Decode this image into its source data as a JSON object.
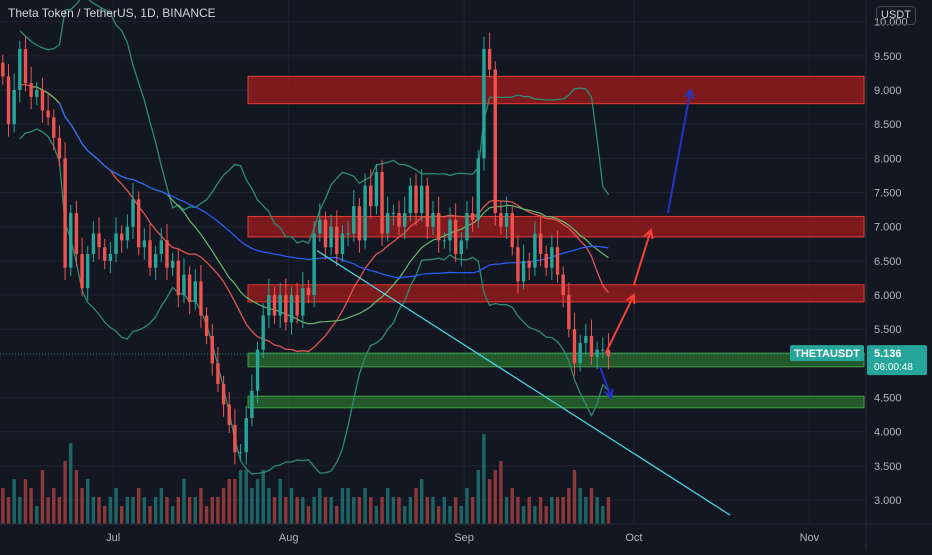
{
  "header": {
    "title": "Theta Token / TetherUS, 1D, BINANCE",
    "currency_button": "USDT"
  },
  "price_tag": {
    "symbol": "THETAUSDT",
    "price": "5.136",
    "countdown": "06:00:48",
    "color": "#26a69a"
  },
  "colors": {
    "background": "#131722",
    "grid": "#1f2330",
    "axis_text": "#b2b5be",
    "candle_up": "#26a69a",
    "candle_down": "#ef5350",
    "resistance_zone": "#b71c1c",
    "support_zone": "#2e7d32",
    "trendline": "#4dd0e1",
    "bb_outer": "#2e8b72",
    "bb_basis": "#e05550",
    "ma_long": "#2962ff",
    "ma_mid": "#66bb6a",
    "arrow_red": "#f44336",
    "arrow_blue": "#2035c8"
  },
  "chart_data": {
    "type": "candlestick",
    "title": "Theta Token / TetherUS, 1D, BINANCE",
    "x_tick_labels": [
      "Jul",
      "Aug",
      "Sep",
      "Oct",
      "Nov"
    ],
    "y_tick_labels": [
      "10.000",
      "9.500",
      "9.000",
      "8.500",
      "8.000",
      "7.500",
      "7.000",
      "6.500",
      "6.000",
      "5.500",
      "4.500",
      "4.000",
      "3.500",
      "3.000"
    ],
    "y_ticks": [
      10,
      9.5,
      9,
      8.5,
      8,
      7.5,
      7,
      6.5,
      6,
      5.5,
      4.5,
      4,
      3.5,
      3
    ],
    "ylim": [
      2.65,
      10.2
    ],
    "start_date": "2021-06-11",
    "end_date": "2021-11-11",
    "x_ticks": [
      "2021-07-01",
      "2021-08-01",
      "2021-09-01",
      "2021-10-01",
      "2021-11-01"
    ],
    "closes": [
      9.2,
      8.5,
      9.0,
      9.6,
      9.1,
      8.9,
      9.0,
      8.7,
      8.6,
      8.3,
      8.0,
      6.4,
      7.2,
      6.6,
      6.1,
      6.6,
      6.9,
      6.7,
      6.5,
      6.6,
      6.9,
      6.8,
      7.0,
      7.4,
      6.7,
      6.8,
      6.4,
      6.6,
      6.8,
      6.4,
      6.5,
      6.0,
      6.3,
      5.9,
      6.2,
      5.7,
      5.4,
      5.0,
      4.7,
      4.4,
      4.1,
      3.7,
      3.7,
      4.2,
      4.6,
      5.2,
      5.7,
      6.0,
      5.7,
      6.0,
      5.6,
      6.0,
      5.7,
      6.1,
      6.0,
      6.9,
      7.1,
      6.7,
      7.0,
      6.6,
      6.9,
      6.9,
      7.3,
      6.8,
      7.6,
      7.3,
      7.8,
      6.9,
      7.2,
      7.2,
      7.0,
      7.2,
      7.6,
      7.2,
      7.6,
      7.0,
      7.2,
      6.8,
      6.8,
      7.1,
      6.6,
      6.8,
      7.2,
      7.1,
      8.0,
      9.6,
      9.3,
      7.2,
      7.0,
      7.2,
      6.7,
      6.2,
      6.5,
      6.4,
      6.9,
      6.6,
      6.4,
      6.7,
      6.3,
      6.0,
      5.5,
      5.0,
      5.3,
      5.4,
      5.1,
      5.2,
      5.2,
      5.1
    ],
    "volume_scale": [
      0.4,
      0.3,
      0.5,
      0.3,
      0.5,
      0.4,
      0.2,
      0.6,
      0.3,
      0.4,
      0.3,
      0.7,
      0.9,
      0.6,
      0.4,
      0.5,
      0.3,
      0.3,
      0.2,
      0.3,
      0.4,
      0.2,
      0.3,
      0.3,
      0.4,
      0.3,
      0.2,
      0.3,
      0.4,
      0.3,
      0.2,
      0.3,
      0.5,
      0.3,
      0.3,
      0.4,
      0.2,
      0.3,
      0.3,
      0.4,
      0.5,
      0.5,
      0.6,
      0.6,
      0.4,
      0.5,
      0.6,
      0.4,
      0.3,
      0.5,
      0.3,
      0.4,
      0.3,
      0.3,
      0.2,
      0.3,
      0.4,
      0.3,
      0.3,
      0.2,
      0.4,
      0.4,
      0.3,
      0.3,
      0.4,
      0.3,
      0.2,
      0.3,
      0.4,
      0.3,
      0.3,
      0.2,
      0.3,
      0.4,
      0.5,
      0.3,
      0.3,
      0.2,
      0.3,
      0.2,
      0.3,
      0.2,
      0.4,
      0.3,
      0.6,
      1.0,
      0.5,
      0.6,
      0.7,
      0.3,
      0.4,
      0.3,
      0.2,
      0.3,
      0.2,
      0.3,
      0.2,
      0.3,
      0.3,
      0.3,
      0.4,
      0.6,
      0.4,
      0.3,
      0.4,
      0.3,
      0.2,
      0.3
    ],
    "zones": [
      {
        "kind": "resistance",
        "y1": 8.8,
        "y2": 9.2
      },
      {
        "kind": "resistance",
        "y1": 6.85,
        "y2": 7.15
      },
      {
        "kind": "resistance",
        "y1": 5.9,
        "y2": 6.15
      },
      {
        "kind": "support",
        "y1": 4.95,
        "y2": 5.15
      },
      {
        "kind": "support",
        "y1": 4.35,
        "y2": 4.52
      }
    ],
    "trendline": {
      "x1": "2021-08-06",
      "y1": 6.65,
      "x2": "2021-10-18",
      "y2": 2.78
    },
    "arrows": [
      {
        "color": "red",
        "x1": "2021-09-26",
        "y1": 5.15,
        "x2": "2021-10-01",
        "y2": 6.0
      },
      {
        "color": "red",
        "x1": "2021-10-01",
        "y1": 6.15,
        "x2": "2021-10-04",
        "y2": 6.95
      },
      {
        "color": "blue",
        "x1": "2021-10-07",
        "y1": 7.2,
        "x2": "2021-10-11",
        "y2": 9.0
      },
      {
        "color": "blue",
        "x1": "2021-09-25",
        "y1": 4.95,
        "x2": "2021-09-27",
        "y2": 4.5
      }
    ]
  }
}
